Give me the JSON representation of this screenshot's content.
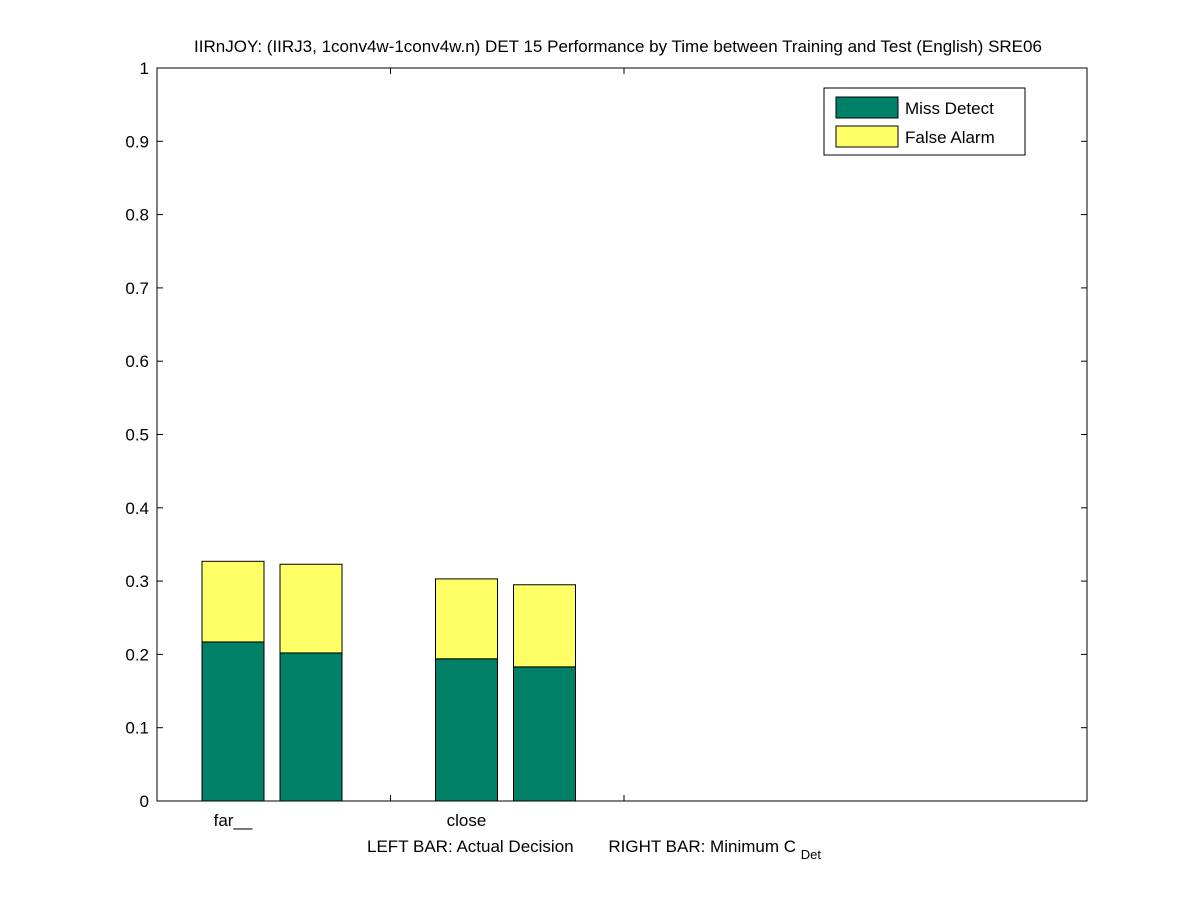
{
  "chart_data": {
    "type": "bar",
    "stacked": true,
    "title": "IIRnJOY: (IIRJ3, 1conv4w-1conv4w.n) DET 15 Performance by Time between Training and Test (English) SRE06",
    "categories": [
      "far__",
      "close"
    ],
    "bar_roles": [
      "LEFT BAR: Actual Decision",
      "RIGHT BAR: Minimum C"
    ],
    "xlabel": {
      "left": "LEFT BAR: Actual Decision",
      "right": "RIGHT BAR: Minimum C",
      "right_subscript": "Det"
    },
    "ylim": [
      0,
      1
    ],
    "yticks": [
      "0",
      "0.1",
      "0.2",
      "0.3",
      "0.4",
      "0.5",
      "0.6",
      "0.7",
      "0.8",
      "0.9",
      "1"
    ],
    "grid": false,
    "legend_position": "top-right",
    "series": [
      {
        "name": "Miss Detect",
        "color": "#008066",
        "values": [
          [
            0.217,
            0.202
          ],
          [
            0.194,
            0.183
          ]
        ]
      },
      {
        "name": "False Alarm",
        "color": "#ffff66",
        "values": [
          [
            0.11,
            0.121
          ],
          [
            0.109,
            0.112
          ]
        ]
      }
    ]
  }
}
